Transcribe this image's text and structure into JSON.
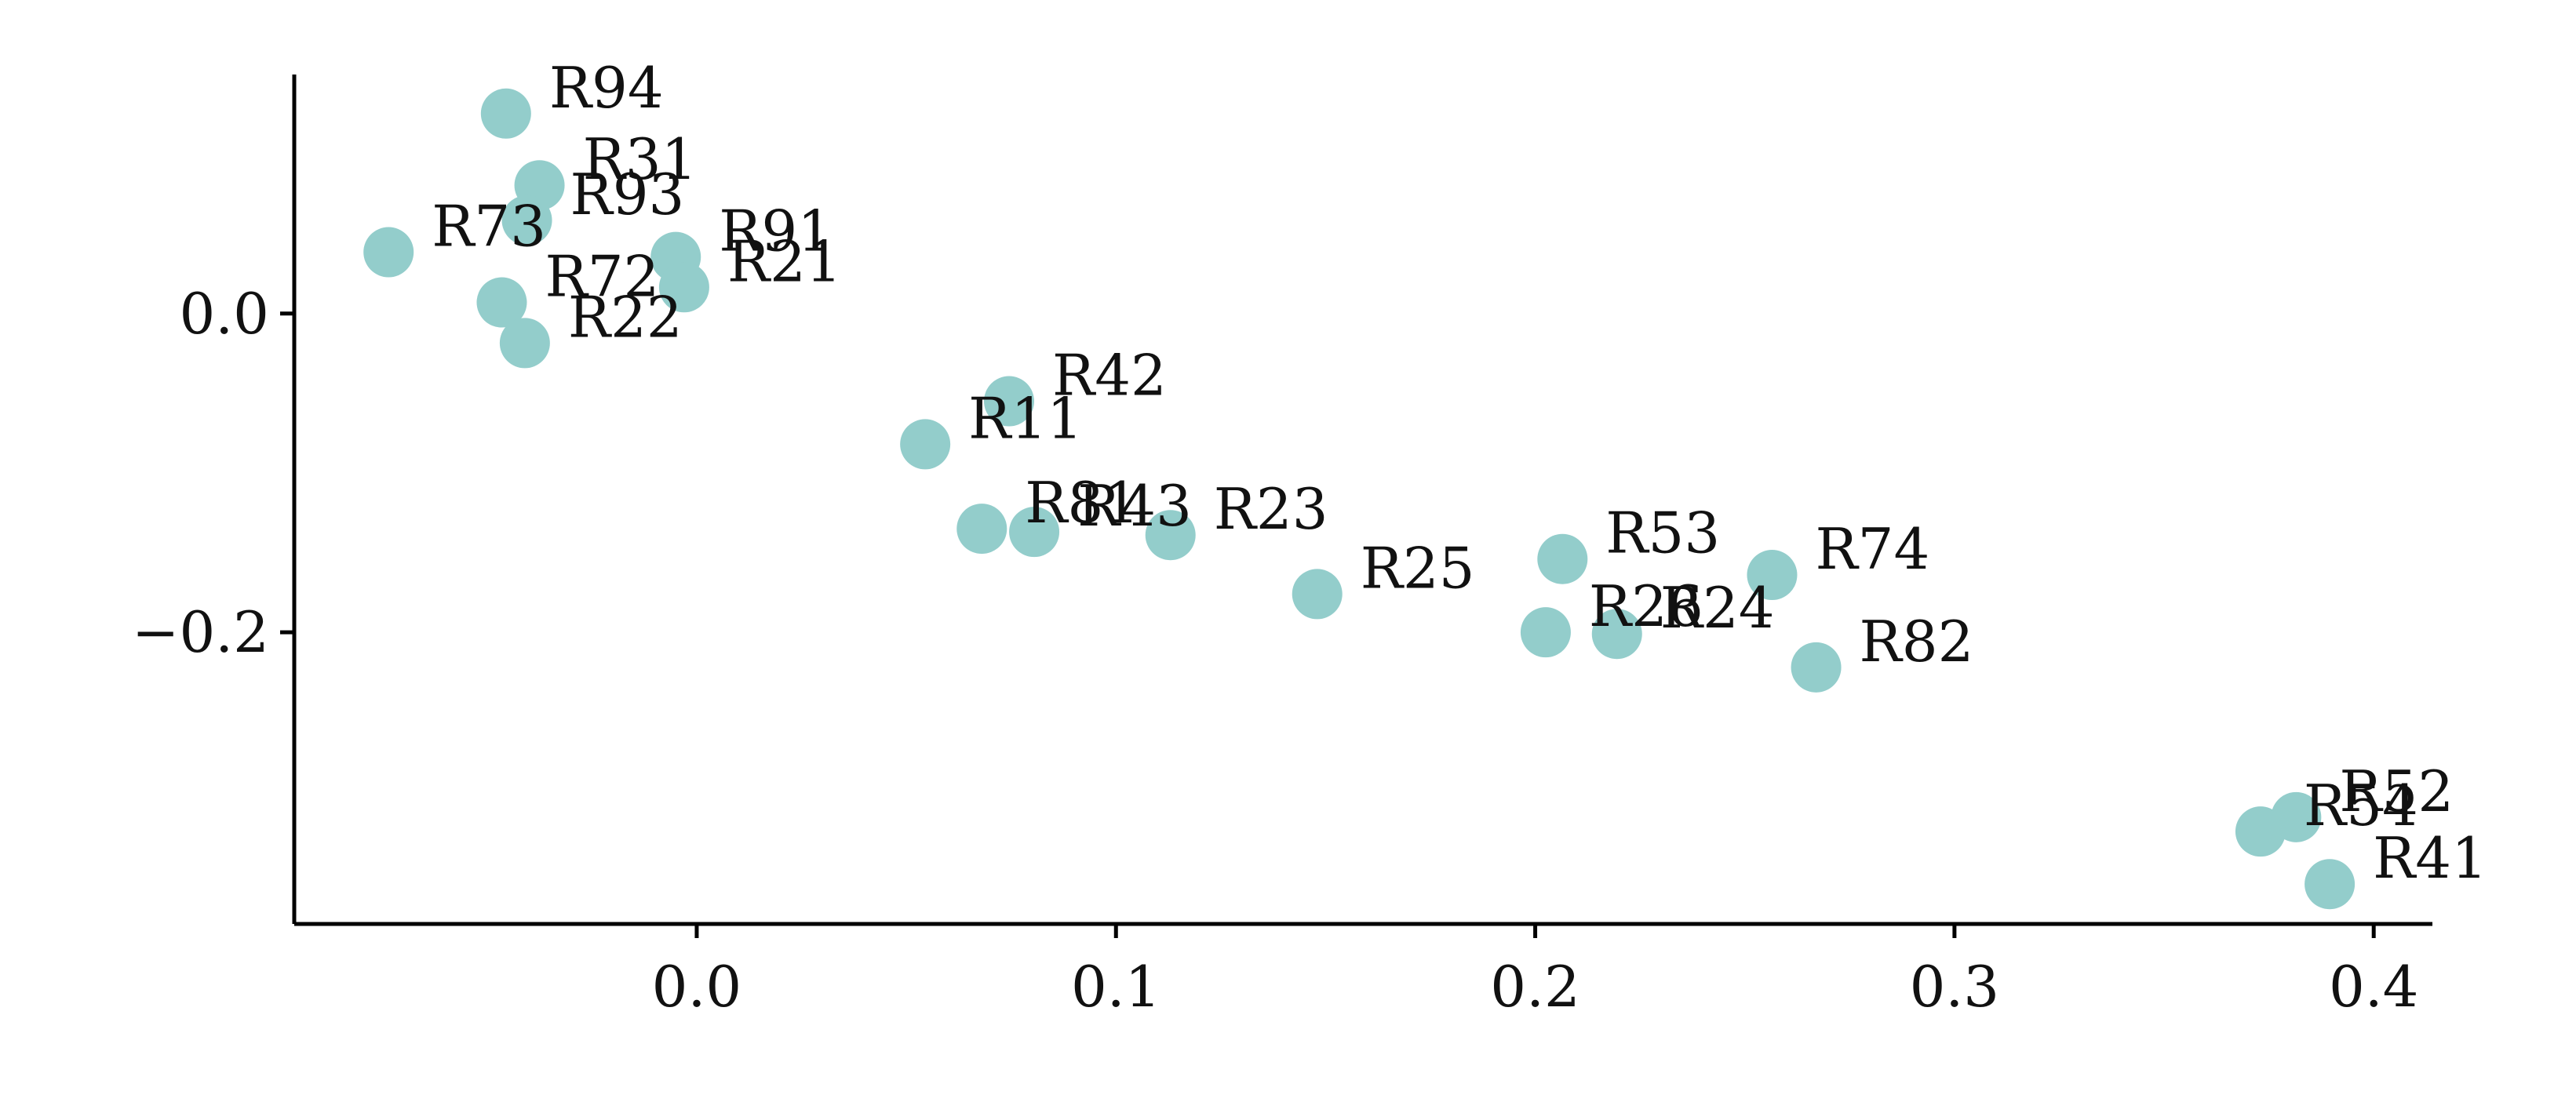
{
  "chart_data": {
    "type": "scatter",
    "title": "",
    "xlabel": "",
    "ylabel": "",
    "xlim": [
      -0.096,
      0.414
    ],
    "ylim": [
      -0.383,
      0.15
    ],
    "grid": false,
    "legend": "none",
    "point_color": "#93CDCB",
    "x_ticks": [
      0.0,
      0.1,
      0.2,
      0.3,
      0.4
    ],
    "x_tick_labels": [
      "0.0",
      "0.1",
      "0.2",
      "0.3",
      "0.4"
    ],
    "y_ticks": [
      0.0,
      -0.2
    ],
    "y_tick_labels": [
      "0.0",
      "−0.2"
    ],
    "points": [
      {
        "label": "R94",
        "x": -0.0455,
        "y": 0.1255
      },
      {
        "label": "R31",
        "x": -0.0375,
        "y": 0.0805
      },
      {
        "label": "R93",
        "x": -0.0405,
        "y": 0.0585
      },
      {
        "label": "R73",
        "x": -0.0735,
        "y": 0.0385
      },
      {
        "label": "R91",
        "x": -0.005,
        "y": 0.0355
      },
      {
        "label": "R21",
        "x": -0.003,
        "y": 0.0165
      },
      {
        "label": "R72",
        "x": -0.0465,
        "y": 0.007
      },
      {
        "label": "R22",
        "x": -0.041,
        "y": -0.0185
      },
      {
        "label": "R42",
        "x": 0.0745,
        "y": -0.055
      },
      {
        "label": "R11",
        "x": 0.0545,
        "y": -0.082
      },
      {
        "label": "R81",
        "x": 0.068,
        "y": -0.135
      },
      {
        "label": "R43",
        "x": 0.0805,
        "y": -0.137
      },
      {
        "label": "R23",
        "x": 0.113,
        "y": -0.139
      },
      {
        "label": "R25",
        "x": 0.148,
        "y": -0.176
      },
      {
        "label": "R53",
        "x": 0.2065,
        "y": -0.154
      },
      {
        "label": "R74",
        "x": 0.2565,
        "y": -0.164
      },
      {
        "label": "R26",
        "x": 0.2025,
        "y": -0.2
      },
      {
        "label": "R24",
        "x": 0.2195,
        "y": -0.201
      },
      {
        "label": "R82",
        "x": 0.267,
        "y": -0.222
      },
      {
        "label": "R52",
        "x": 0.3815,
        "y": -0.316
      },
      {
        "label": "R54",
        "x": 0.373,
        "y": -0.325
      },
      {
        "label": "R41",
        "x": 0.3895,
        "y": -0.358
      }
    ]
  }
}
